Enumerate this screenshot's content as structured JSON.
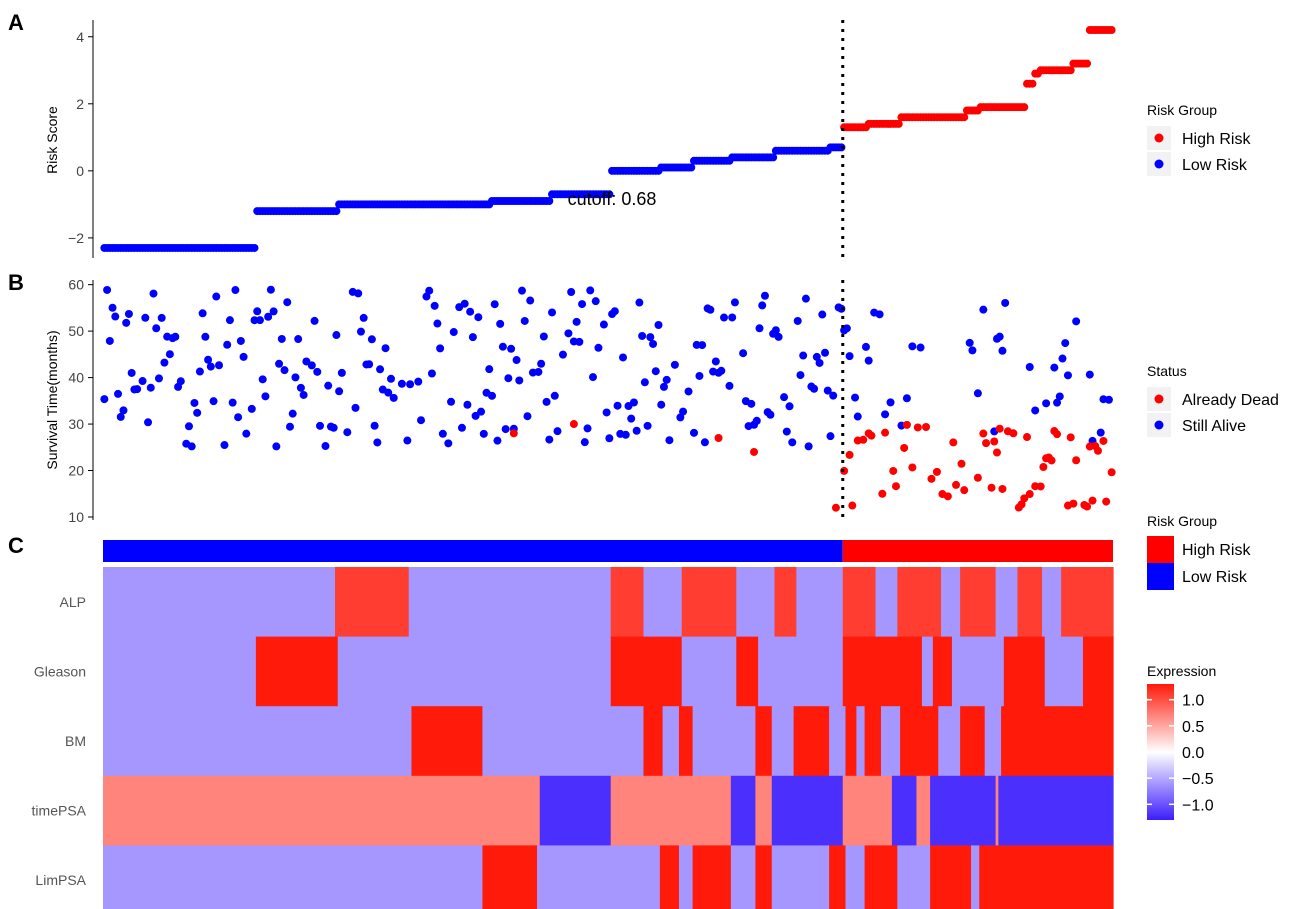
{
  "panels": {
    "a": "A",
    "b": "B",
    "c": "C"
  },
  "colors": {
    "high": "#ff0000",
    "low": "#0000ff",
    "heat_high": "#ff1a0a",
    "heat_mid": "#ffffff",
    "heat_low": "#3c1efc"
  },
  "chart_data": [
    {
      "type": "scatter",
      "ylabel": "Risk Score",
      "yticks": [
        -2,
        0,
        2,
        4
      ],
      "ylim": [
        -2.6,
        4.5
      ],
      "xlim": [
        0,
        370
      ],
      "cutoff_x": 271,
      "cutoff_label": "cutoff: 0.68",
      "legend": {
        "title": "Risk Group",
        "items": [
          "High Risk",
          "Low Risk"
        ]
      },
      "steps": [
        {
          "from": 0,
          "to": 56,
          "value": -2.3,
          "group": "low"
        },
        {
          "from": 56,
          "to": 86,
          "value": -1.2,
          "group": "low"
        },
        {
          "from": 86,
          "to": 142,
          "value": -1.0,
          "group": "low"
        },
        {
          "from": 142,
          "to": 164,
          "value": -0.9,
          "group": "low"
        },
        {
          "from": 164,
          "to": 186,
          "value": -0.7,
          "group": "low"
        },
        {
          "from": 186,
          "to": 204,
          "value": 0.0,
          "group": "low"
        },
        {
          "from": 204,
          "to": 216,
          "value": 0.1,
          "group": "low"
        },
        {
          "from": 216,
          "to": 230,
          "value": 0.3,
          "group": "low"
        },
        {
          "from": 230,
          "to": 246,
          "value": 0.4,
          "group": "low"
        },
        {
          "from": 246,
          "to": 266,
          "value": 0.6,
          "group": "low"
        },
        {
          "from": 266,
          "to": 271,
          "value": 0.7,
          "group": "low"
        },
        {
          "from": 271,
          "to": 280,
          "value": 1.3,
          "group": "high"
        },
        {
          "from": 280,
          "to": 292,
          "value": 1.4,
          "group": "high"
        },
        {
          "from": 292,
          "to": 316,
          "value": 1.6,
          "group": "high"
        },
        {
          "from": 316,
          "to": 321,
          "value": 1.8,
          "group": "high"
        },
        {
          "from": 321,
          "to": 338,
          "value": 1.9,
          "group": "high"
        },
        {
          "from": 338,
          "to": 341,
          "value": 2.6,
          "group": "high"
        },
        {
          "from": 341,
          "to": 343,
          "value": 2.9,
          "group": "high"
        },
        {
          "from": 343,
          "to": 355,
          "value": 3.0,
          "group": "high"
        },
        {
          "from": 355,
          "to": 361,
          "value": 3.2,
          "group": "high"
        },
        {
          "from": 361,
          "to": 370,
          "value": 4.2,
          "group": "high"
        }
      ]
    },
    {
      "type": "scatter",
      "ylabel": "Survival Time(months)",
      "yticks": [
        10,
        20,
        30,
        40,
        50,
        60
      ],
      "ylim": [
        10,
        61
      ],
      "xlim": [
        0,
        370
      ],
      "cutoff_x": 271,
      "legend": {
        "title": "Status",
        "items": [
          "Already Dead",
          "Still Alive"
        ]
      }
    },
    {
      "type": "heatmap",
      "annotation": {
        "title": "Risk Group",
        "items": [
          "High Risk",
          "Low Risk"
        ]
      },
      "colorbar": {
        "title": "Expression",
        "ticks": [
          "1.0",
          "0.5",
          "0.0",
          "−0.5",
          "−1.0"
        ],
        "range": [
          -1.3,
          1.3
        ]
      },
      "n_samples": 370,
      "cutoff_x": 271,
      "rows": [
        {
          "name": "ALP",
          "segments": [
            [
              0,
              85,
              -0.6
            ],
            [
              85,
              112,
              1.1
            ],
            [
              112,
              186,
              -0.6
            ],
            [
              186,
              198,
              1.1
            ],
            [
              198,
              212,
              -0.6
            ],
            [
              212,
              232,
              1.1
            ],
            [
              232,
              246,
              -0.6
            ],
            [
              246,
              254,
              1.1
            ],
            [
              254,
              271,
              -0.6
            ],
            [
              271,
              283,
              1.1
            ],
            [
              283,
              291,
              -0.6
            ],
            [
              291,
              307,
              1.1
            ],
            [
              307,
              314,
              -0.6
            ],
            [
              314,
              327,
              1.1
            ],
            [
              327,
              335,
              -0.6
            ],
            [
              335,
              344,
              1.1
            ],
            [
              344,
              351,
              -0.6
            ],
            [
              351,
              370,
              1.1
            ]
          ]
        },
        {
          "name": "Gleason",
          "segments": [
            [
              0,
              56,
              -0.6
            ],
            [
              56,
              86,
              1.3
            ],
            [
              86,
              186,
              -0.6
            ],
            [
              186,
              212,
              1.3
            ],
            [
              212,
              232,
              -0.6
            ],
            [
              232,
              240,
              1.3
            ],
            [
              240,
              271,
              -0.6
            ],
            [
              271,
              300,
              1.3
            ],
            [
              300,
              304,
              -0.6
            ],
            [
              304,
              311,
              1.3
            ],
            [
              311,
              330,
              -0.6
            ],
            [
              330,
              345,
              1.3
            ],
            [
              345,
              359,
              -0.6
            ],
            [
              359,
              370,
              1.3
            ]
          ]
        },
        {
          "name": "BM",
          "segments": [
            [
              0,
              113,
              -0.6
            ],
            [
              113,
              139,
              1.3
            ],
            [
              139,
              198,
              -0.6
            ],
            [
              198,
              205,
              1.3
            ],
            [
              205,
              211,
              -0.6
            ],
            [
              211,
              216,
              1.3
            ],
            [
              216,
              239,
              -0.6
            ],
            [
              239,
              245,
              1.3
            ],
            [
              245,
              253,
              -0.6
            ],
            [
              253,
              266,
              1.3
            ],
            [
              266,
              272,
              -0.6
            ],
            [
              272,
              276,
              1.3
            ],
            [
              276,
              279,
              -0.6
            ],
            [
              279,
              285,
              1.3
            ],
            [
              285,
              292,
              -0.6
            ],
            [
              292,
              306,
              1.3
            ],
            [
              306,
              314,
              -0.6
            ],
            [
              314,
              323,
              1.3
            ],
            [
              323,
              329,
              -0.6
            ],
            [
              329,
              370,
              1.3
            ]
          ]
        },
        {
          "name": "timePSA",
          "segments": [
            [
              0,
              160,
              0.7
            ],
            [
              160,
              186,
              -1.2
            ],
            [
              186,
              230,
              0.7
            ],
            [
              230,
              239,
              -1.2
            ],
            [
              239,
              245,
              0.7
            ],
            [
              245,
              271,
              -1.2
            ],
            [
              271,
              289,
              0.7
            ],
            [
              289,
              298,
              -1.2
            ],
            [
              298,
              303,
              0.7
            ],
            [
              303,
              327,
              -1.2
            ],
            [
              327,
              328,
              0.7
            ],
            [
              328,
              370,
              -1.2
            ]
          ]
        },
        {
          "name": "LimPSA",
          "segments": [
            [
              0,
              139,
              -0.6
            ],
            [
              139,
              159,
              1.3
            ],
            [
              159,
              204,
              -0.6
            ],
            [
              204,
              211,
              1.3
            ],
            [
              211,
              216,
              -0.6
            ],
            [
              216,
              230,
              1.3
            ],
            [
              230,
              239,
              -0.6
            ],
            [
              239,
              245,
              1.3
            ],
            [
              245,
              266,
              -0.6
            ],
            [
              266,
              272,
              1.3
            ],
            [
              272,
              279,
              -0.6
            ],
            [
              279,
              291,
              1.3
            ],
            [
              291,
              303,
              -0.6
            ],
            [
              303,
              318,
              1.3
            ],
            [
              318,
              321,
              -0.6
            ],
            [
              321,
              370,
              1.3
            ]
          ]
        }
      ]
    }
  ]
}
